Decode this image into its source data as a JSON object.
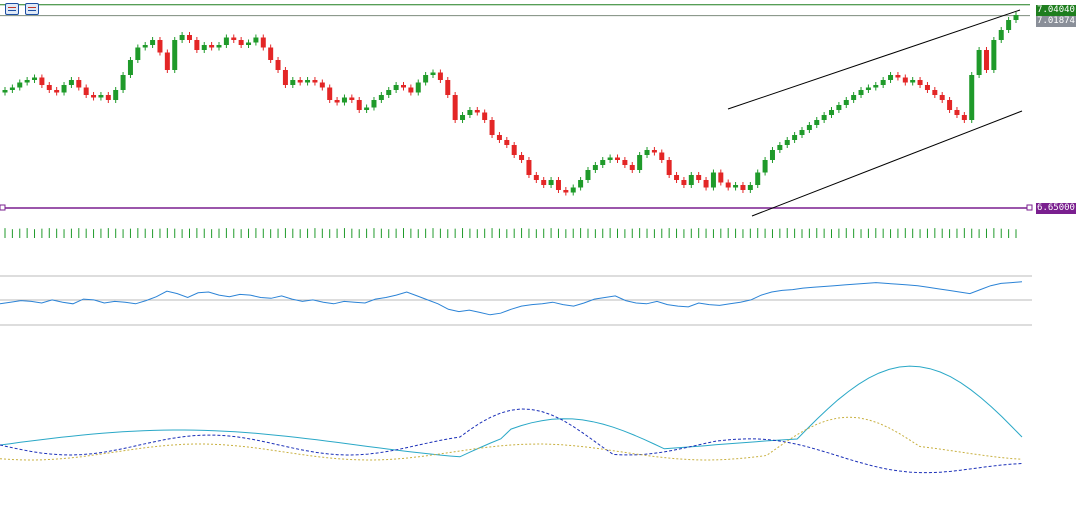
{
  "toolbar": {
    "icons": [
      "list-icon",
      "layout-icon"
    ]
  },
  "price_labels": {
    "high_line": {
      "value": "7.04040",
      "color": "#1e7e1e"
    },
    "last_price": {
      "value": "7.01874",
      "color": "#8a8f99"
    },
    "support_line": {
      "value": "6.65000",
      "color": "#7a1f8f"
    }
  },
  "colors": {
    "bull": "#1f9a2a",
    "bear": "#e32626",
    "rsi": "#2b83d6",
    "ind_solid": "#2aa8c7",
    "ind_blue": "#1a2fb8",
    "ind_yellow": "#c8b040"
  },
  "chart_data": {
    "type": "candlestick",
    "price_range": [
      6.64,
      7.05
    ],
    "horizontal_levels": [
      7.0404,
      7.01874,
      6.65
    ],
    "closes": [
      6.87,
      6.875,
      6.885,
      6.89,
      6.895,
      6.88,
      6.87,
      6.865,
      6.88,
      6.89,
      6.875,
      6.86,
      6.855,
      6.86,
      6.85,
      6.87,
      6.9,
      6.93,
      6.955,
      6.96,
      6.97,
      6.945,
      6.91,
      6.97,
      6.98,
      6.97,
      6.95,
      6.96,
      6.955,
      6.96,
      6.975,
      6.97,
      6.96,
      6.965,
      6.975,
      6.955,
      6.93,
      6.91,
      6.88,
      6.89,
      6.885,
      6.89,
      6.885,
      6.875,
      6.85,
      6.845,
      6.855,
      6.85,
      6.83,
      6.835,
      6.85,
      6.86,
      6.87,
      6.88,
      6.875,
      6.865,
      6.885,
      6.9,
      6.905,
      6.89,
      6.86,
      6.81,
      6.82,
      6.83,
      6.825,
      6.81,
      6.78,
      6.77,
      6.76,
      6.74,
      6.73,
      6.7,
      6.69,
      6.68,
      6.69,
      6.67,
      6.665,
      6.675,
      6.69,
      6.71,
      6.72,
      6.73,
      6.735,
      6.73,
      6.72,
      6.71,
      6.74,
      6.75,
      6.745,
      6.73,
      6.7,
      6.69,
      6.68,
      6.7,
      6.69,
      6.675,
      6.705,
      6.685,
      6.675,
      6.68,
      6.67,
      6.68,
      6.705,
      6.73,
      6.75,
      6.76,
      6.77,
      6.78,
      6.79,
      6.8,
      6.81,
      6.82,
      6.83,
      6.84,
      6.85,
      6.86,
      6.87,
      6.875,
      6.88,
      6.89,
      6.9,
      6.895,
      6.885,
      6.89,
      6.88,
      6.87,
      6.86,
      6.85,
      6.83,
      6.82,
      6.81,
      6.9,
      6.95,
      6.91,
      6.97,
      6.99,
      7.01,
      7.02
    ],
    "volumes": [
      18,
      16,
      17,
      18,
      16,
      17,
      18,
      17,
      16,
      17,
      18,
      17,
      16,
      17,
      18,
      17,
      16,
      17,
      18,
      17,
      16,
      17,
      18,
      17,
      16,
      17,
      18,
      17,
      16,
      17,
      18,
      17,
      16,
      17,
      18,
      17,
      16,
      17,
      18,
      17,
      16,
      17,
      18,
      17,
      16,
      17,
      18,
      17,
      16,
      17,
      18,
      17,
      16,
      17,
      18,
      17,
      16,
      17,
      18,
      17,
      16,
      17,
      18,
      17,
      16,
      17,
      18,
      17,
      16,
      17,
      18,
      17,
      16,
      17,
      18,
      17,
      16,
      17,
      18,
      17,
      16,
      17,
      18,
      17,
      16,
      17,
      18,
      17,
      16,
      17,
      18,
      17,
      16,
      17,
      18,
      17,
      16,
      17,
      18,
      17,
      16,
      17,
      18,
      17,
      16,
      17,
      18,
      17,
      16,
      17,
      18,
      17,
      16,
      17,
      18,
      17,
      16,
      17,
      18,
      17,
      16,
      17,
      18,
      17,
      16,
      17,
      18,
      17,
      16,
      17,
      18,
      17,
      16,
      17,
      18,
      17
    ],
    "rsi": [
      47,
      49,
      51,
      50,
      48,
      52,
      49,
      47,
      53,
      52,
      48,
      50,
      49,
      47,
      51,
      56,
      63,
      60,
      55,
      61,
      62,
      58,
      56,
      59,
      58,
      55,
      54,
      57,
      53,
      50,
      52,
      49,
      47,
      50,
      49,
      48,
      53,
      55,
      58,
      62,
      57,
      52,
      47,
      40,
      37,
      39,
      36,
      33,
      35,
      40,
      44,
      46,
      47,
      49,
      46,
      44,
      48,
      53,
      55,
      57,
      51,
      48,
      47,
      50,
      46,
      44,
      43,
      48,
      46,
      45,
      47,
      49,
      52,
      58,
      62,
      64,
      65,
      67,
      68,
      69,
      70,
      71,
      72,
      73,
      74,
      73,
      72,
      71,
      70,
      68,
      66,
      64,
      62,
      60,
      65,
      70,
      73,
      74,
      75
    ],
    "indicator": {
      "solid": [],
      "blue_dashed": [],
      "yellow_dashed": []
    }
  }
}
